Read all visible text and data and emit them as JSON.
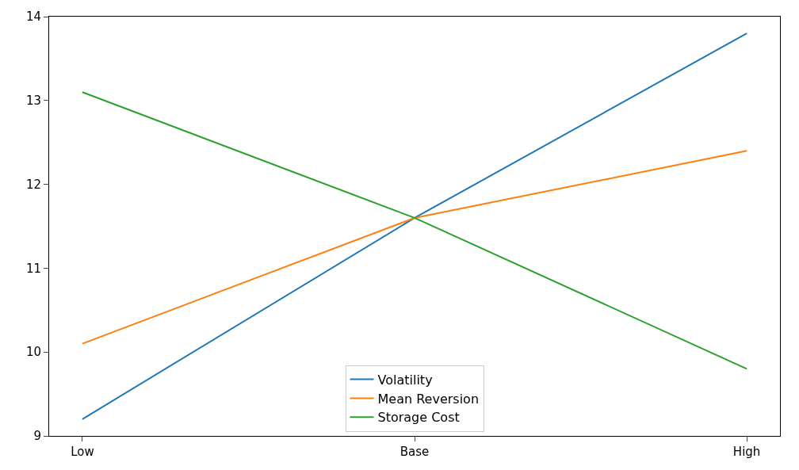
{
  "chart_data": {
    "type": "line",
    "categories": [
      "Low",
      "Base",
      "High"
    ],
    "series": [
      {
        "name": "Volatility",
        "color": "#1f77b4",
        "values": [
          9.2,
          11.6,
          13.8
        ]
      },
      {
        "name": "Mean Reversion",
        "color": "#ff7f0e",
        "values": [
          10.1,
          11.6,
          12.4
        ]
      },
      {
        "name": "Storage Cost",
        "color": "#2ca02c",
        "values": [
          13.1,
          11.6,
          9.8
        ]
      }
    ],
    "ylim": [
      9,
      14
    ],
    "yticks": [
      9,
      10,
      11,
      12,
      13,
      14
    ],
    "legend": "bottom",
    "marker": "none",
    "line_style": "solid"
  }
}
